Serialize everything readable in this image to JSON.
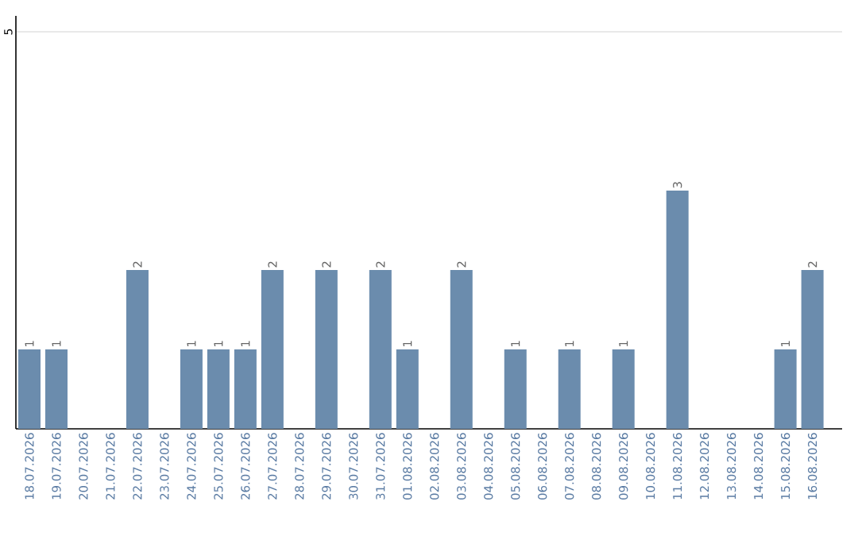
{
  "chart_data": {
    "type": "bar",
    "categories": [
      "18.07.2026",
      "19.07.2026",
      "20.07.2026",
      "21.07.2026",
      "22.07.2026",
      "23.07.2026",
      "24.07.2026",
      "25.07.2026",
      "26.07.2026",
      "27.07.2026",
      "28.07.2026",
      "29.07.2026",
      "30.07.2026",
      "31.07.2026",
      "01.08.2026",
      "02.08.2026",
      "03.08.2026",
      "04.08.2026",
      "05.08.2026",
      "06.08.2026",
      "07.08.2026",
      "08.08.2026",
      "09.08.2026",
      "10.08.2026",
      "11.08.2026",
      "12.08.2026",
      "13.08.2026",
      "14.08.2026",
      "15.08.2026",
      "16.08.2026"
    ],
    "values": [
      1,
      1,
      0,
      0,
      2,
      0,
      1,
      1,
      1,
      2,
      0,
      2,
      0,
      2,
      1,
      0,
      2,
      0,
      1,
      0,
      1,
      0,
      1,
      0,
      3,
      0,
      0,
      0,
      1,
      2
    ],
    "value_labels": [
      "1",
      "1",
      null,
      null,
      "2",
      null,
      "1",
      "1",
      "1",
      "2",
      null,
      "2",
      null,
      "2",
      "1",
      null,
      "2",
      null,
      "1",
      null,
      "1",
      null,
      "1",
      null,
      "3",
      null,
      null,
      null,
      "1",
      "2"
    ],
    "color": "#6b8cad",
    "ylim": [
      0,
      5.2
    ],
    "yticks": [
      5
    ],
    "grid": "y"
  }
}
